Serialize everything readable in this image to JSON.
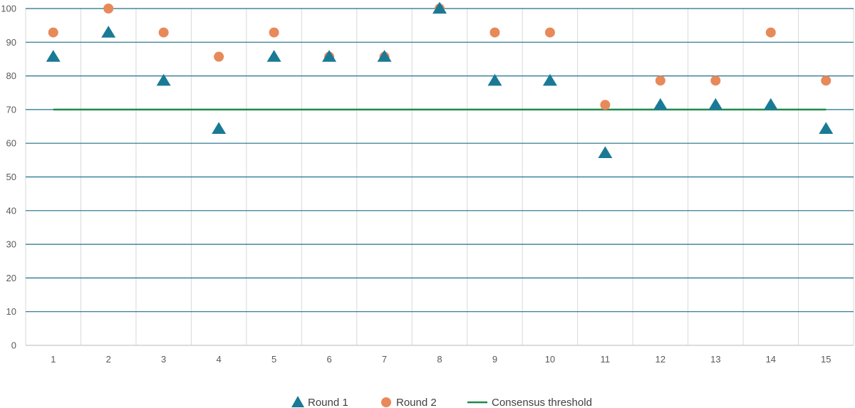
{
  "chart_data": {
    "type": "scatter",
    "title": "",
    "xlabel": "",
    "ylabel": "",
    "categories": [
      "1",
      "2",
      "3",
      "4",
      "5",
      "6",
      "7",
      "8",
      "9",
      "10",
      "11",
      "12",
      "13",
      "14",
      "15"
    ],
    "ylim": [
      0,
      100
    ],
    "yticks": [
      "0",
      "10",
      "20",
      "30",
      "40",
      "50",
      "60",
      "70",
      "80",
      "90",
      "100"
    ],
    "grid": true,
    "legend_position": "bottom",
    "series": [
      {
        "name": "Round 1",
        "marker": "triangle",
        "color": "#1a7a96",
        "values": [
          85.7,
          92.9,
          78.6,
          64.3,
          85.7,
          85.7,
          85.7,
          100,
          78.6,
          78.6,
          57.1,
          71.4,
          71.4,
          71.4,
          64.3
        ]
      },
      {
        "name": "Round 2",
        "marker": "circle",
        "color": "#e8895a",
        "values": [
          92.9,
          100,
          92.9,
          85.7,
          92.9,
          85.7,
          85.7,
          100,
          92.9,
          92.9,
          71.4,
          78.6,
          78.6,
          92.9,
          78.6
        ]
      },
      {
        "name": "Consensus threshold",
        "marker": "line",
        "color": "#1e8a4a",
        "values": [
          70,
          70,
          70,
          70,
          70,
          70,
          70,
          70,
          70,
          70,
          70,
          70,
          70,
          70,
          70
        ]
      }
    ]
  }
}
